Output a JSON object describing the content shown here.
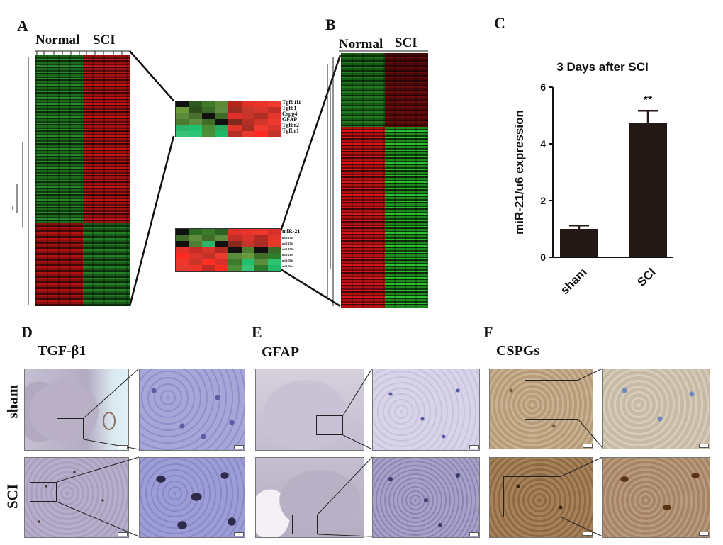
{
  "panels": {
    "A": {
      "letter": "A",
      "group_normal": "Normal",
      "group_sci": "SCI",
      "genes": [
        "Tgfb1i1",
        "Tgfb1",
        "Cspg4",
        "GFAP",
        "Tgfbr2",
        "Tgfbr1"
      ],
      "mirnas_main": "miR-21",
      "mirnas_small": [
        "miR-19a",
        "miR-19b",
        "miR-199a",
        "miR-219",
        "miR-30b",
        "miR-33a"
      ]
    },
    "B": {
      "letter": "B",
      "group_normal": "Normal",
      "group_sci": "SCI"
    },
    "C": {
      "letter": "C"
    },
    "D": {
      "letter": "D",
      "stain": "TGF-β1"
    },
    "E": {
      "letter": "E",
      "stain": "GFAP"
    },
    "F": {
      "letter": "F",
      "stain": "CSPGs"
    }
  },
  "rows": {
    "sham": "sham",
    "sci": "SCI"
  },
  "chart_data": {
    "type": "bar",
    "title": "3 Days after SCI",
    "ylabel": "miR-21/u6 expression",
    "xlabel": "",
    "categories": [
      "sham",
      "SCI"
    ],
    "values": [
      1.0,
      4.75
    ],
    "errors": [
      0.12,
      0.42
    ],
    "ylim": [
      0,
      6
    ],
    "yticks": [
      0,
      2,
      4,
      6
    ],
    "annotation": "**",
    "bar_color": "#231815"
  }
}
